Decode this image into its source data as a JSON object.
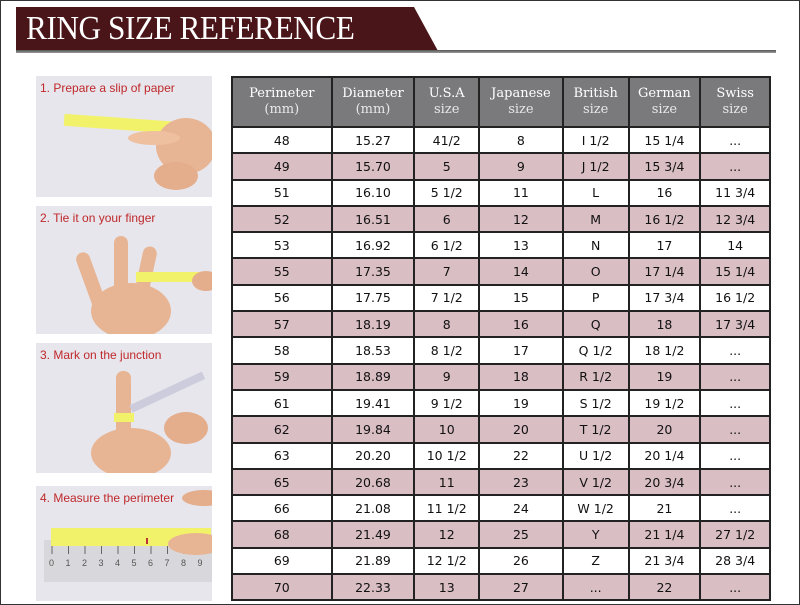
{
  "title": "RING SIZE REFERENCE",
  "steps": [
    {
      "label": "1. Prepare a slip of paper"
    },
    {
      "label": "2. Tie it on your finger"
    },
    {
      "label": "3. Mark on the junction"
    },
    {
      "label": "4. Measure the perimeter"
    }
  ],
  "ruler_ticks": [
    "0",
    "1",
    "2",
    "3",
    "4",
    "5",
    "6",
    "7",
    "8",
    "9"
  ],
  "colors": {
    "banner": "#4a1518",
    "header": "#7a7a7c",
    "alt_row": "#d9bec4",
    "step_label": "#c0282b"
  },
  "table": {
    "headers": [
      {
        "line1": "Perimeter",
        "line2": "(mm)"
      },
      {
        "line1": "Diameter",
        "line2": "(mm)"
      },
      {
        "line1": "U.S.A",
        "line2": "size"
      },
      {
        "line1": "Japanese",
        "line2": "size"
      },
      {
        "line1": "British",
        "line2": "size"
      },
      {
        "line1": "German",
        "line2": "size"
      },
      {
        "line1": "Swiss",
        "line2": "size"
      }
    ],
    "rows": [
      [
        "48",
        "15.27",
        "41/2",
        "8",
        "I 1/2",
        "15 1/4",
        "..."
      ],
      [
        "49",
        "15.70",
        "5",
        "9",
        "J 1/2",
        "15 3/4",
        "..."
      ],
      [
        "51",
        "16.10",
        "5 1/2",
        "11",
        "L",
        "16",
        "11 3/4"
      ],
      [
        "52",
        "16.51",
        "6",
        "12",
        "M",
        "16 1/2",
        "12 3/4"
      ],
      [
        "53",
        "16.92",
        "6 1/2",
        "13",
        "N",
        "17",
        "14"
      ],
      [
        "55",
        "17.35",
        "7",
        "14",
        "O",
        "17 1/4",
        "15 1/4"
      ],
      [
        "56",
        "17.75",
        "7 1/2",
        "15",
        "P",
        "17 3/4",
        "16 1/2"
      ],
      [
        "57",
        "18.19",
        "8",
        "16",
        "Q",
        "18",
        "17 3/4"
      ],
      [
        "58",
        "18.53",
        "8 1/2",
        "17",
        "Q  1/2",
        "18 1/2",
        "..."
      ],
      [
        "59",
        "18.89",
        "9",
        "18",
        "R 1/2",
        "19",
        "..."
      ],
      [
        "61",
        "19.41",
        "9 1/2",
        "19",
        "S 1/2",
        "19 1/2",
        "..."
      ],
      [
        "62",
        "19.84",
        "10",
        "20",
        "T 1/2",
        "20",
        "..."
      ],
      [
        "63",
        "20.20",
        "10 1/2",
        "22",
        "U 1/2",
        "20 1/4",
        "..."
      ],
      [
        "65",
        "20.68",
        "11",
        "23",
        "V 1/2",
        "20 3/4",
        "..."
      ],
      [
        "66",
        "21.08",
        "11 1/2",
        "24",
        "W 1/2",
        "21",
        "..."
      ],
      [
        "68",
        "21.49",
        "12",
        "25",
        "Y",
        "21 1/4",
        "27 1/2"
      ],
      [
        "69",
        "21.89",
        "12 1/2",
        "26",
        "Z",
        "21 3/4",
        "28 3/4"
      ],
      [
        "70",
        "22.33",
        "13",
        "27",
        "...",
        "22",
        "..."
      ]
    ]
  }
}
